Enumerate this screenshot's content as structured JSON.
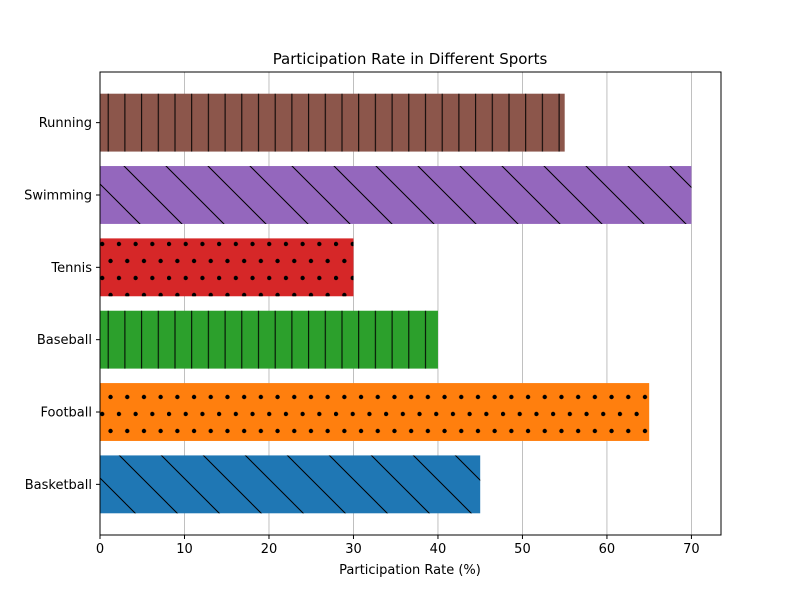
{
  "chart_data": {
    "type": "bar",
    "orientation": "horizontal",
    "title": "Participation Rate in Different Sports",
    "xlabel": "Participation Rate (%)",
    "ylabel": "",
    "xlim": [
      0,
      73.5
    ],
    "x_ticks": [
      0,
      10,
      20,
      30,
      40,
      50,
      60,
      70
    ],
    "grid": "vertical",
    "categories": [
      "Basketball",
      "Football",
      "Baseball",
      "Tennis",
      "Swimming",
      "Running"
    ],
    "values": [
      45,
      65,
      40,
      30,
      70,
      55
    ],
    "colors": [
      "#1f77b4",
      "#ff7f0e",
      "#2ca02c",
      "#d62728",
      "#9467bd",
      "#8c564b"
    ],
    "hatches": [
      "diagonal-back",
      "dots",
      "vertical",
      "dots",
      "diagonal-back",
      "vertical"
    ]
  }
}
